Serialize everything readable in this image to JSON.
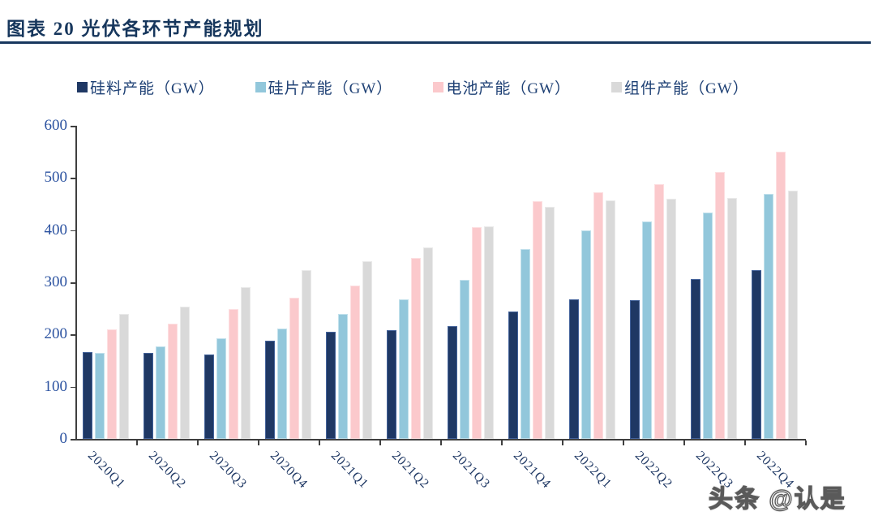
{
  "header": {
    "title": "图表 20 光伏各环节产能规划"
  },
  "watermark": "头条 @认是",
  "chart_data": {
    "type": "bar",
    "title": "图表 20 光伏各环节产能规划",
    "xlabel": "",
    "ylabel": "",
    "ylim": [
      0,
      600
    ],
    "ytick_step": 100,
    "grid": false,
    "legend_position": "top",
    "categories": [
      "2020Q1",
      "2020Q2",
      "2020Q3",
      "2020Q4",
      "2021Q1",
      "2021Q2",
      "2021Q3",
      "2021Q4",
      "2022Q1",
      "2022Q2",
      "2022Q3",
      "2022Q4"
    ],
    "series": [
      {
        "name": "硅料产能（GW）",
        "color": "#1F3864",
        "border_color": "#44639B",
        "values": [
          167,
          165,
          161,
          188,
          205,
          208,
          216,
          244,
          267,
          266,
          306,
          323
        ]
      },
      {
        "name": "硅片产能（GW）",
        "color": "#92C7DB",
        "border_color": "#C2E1EC",
        "values": [
          164,
          177,
          193,
          212,
          240,
          268,
          304,
          364,
          400,
          416,
          433,
          470
        ]
      },
      {
        "name": "电池产能（GW）",
        "color": "#FBC9CC",
        "border_color": "#FDDFE1",
        "values": [
          210,
          220,
          248,
          271,
          294,
          346,
          405,
          455,
          472,
          488,
          512,
          550
        ]
      },
      {
        "name": "组件产能（GW）",
        "color": "#D9D9D9",
        "border_color": "#EAEAEA",
        "values": [
          240,
          253,
          291,
          324,
          340,
          367,
          408,
          445,
          457,
          460,
          462,
          476
        ]
      }
    ],
    "axis_color": "#3f3f3f",
    "ytick_label_color": "#2B52A0",
    "xtick_label_color": "#1F3864"
  }
}
